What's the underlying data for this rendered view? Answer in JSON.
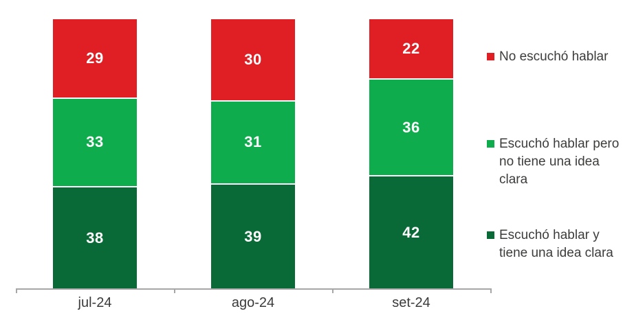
{
  "chart_data": {
    "type": "bar",
    "stacked": true,
    "title": "",
    "xlabel": "",
    "ylabel": "",
    "ylim": [
      0,
      100
    ],
    "grid": false,
    "legend_position": "right",
    "value_labels": true,
    "value_label_color": "#FFFFFF",
    "categories": [
      "jul-24",
      "ago-24",
      "set-24"
    ],
    "series": [
      {
        "name": "Escuchó hablar y tiene una idea clara",
        "color": "#096A37",
        "values": [
          38,
          39,
          42
        ]
      },
      {
        "name": "Escuchó hablar pero no tiene una idea clara",
        "color": "#0FAC4E",
        "values": [
          33,
          31,
          36
        ]
      },
      {
        "name": "No escuchó hablar",
        "color": "#E01F25",
        "values": [
          29,
          30,
          22
        ]
      }
    ],
    "legend_order_top_to_bottom": [
      "No escuchó hablar",
      "Escuchó hablar pero no tiene una idea clara",
      "Escuchó hablar y tiene una idea clara"
    ]
  },
  "colors": {
    "background": "#FFFFFF",
    "axis": "#A6A6A6",
    "category_label": "#3A3A3A",
    "legend_text": "#3C3C3B"
  }
}
